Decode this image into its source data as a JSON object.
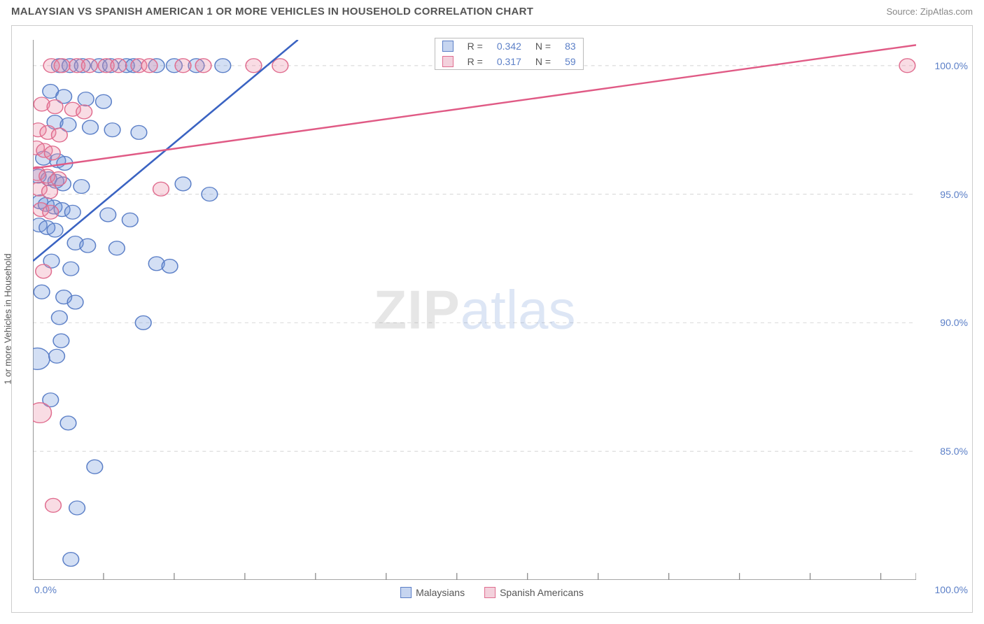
{
  "header": {
    "title": "MALAYSIAN VS SPANISH AMERICAN 1 OR MORE VEHICLES IN HOUSEHOLD CORRELATION CHART",
    "source_prefix": "Source: ",
    "source_name": "ZipAtlas.com"
  },
  "watermark": {
    "text_a": "ZIP",
    "text_b": "atlas"
  },
  "chart": {
    "type": "scatter",
    "ylabel": "1 or more Vehicles in Household",
    "xlim": [
      0,
      100
    ],
    "ylim": [
      80,
      101
    ],
    "x_ticks_minor": [
      0,
      8,
      16,
      24,
      32,
      40,
      48,
      56,
      64,
      72,
      80,
      88,
      96,
      100
    ],
    "x_ticks_labels": [
      {
        "val": 0,
        "label": "0.0%"
      },
      {
        "val": 100,
        "label": "100.0%"
      }
    ],
    "y_gridlines": [
      85,
      90,
      95,
      100
    ],
    "y_ticks_labels": [
      {
        "val": 85,
        "label": "85.0%"
      },
      {
        "val": 90,
        "label": "90.0%"
      },
      {
        "val": 95,
        "label": "95.0%"
      },
      {
        "val": 100,
        "label": "100.0%"
      }
    ],
    "tick_label_color": "#5b7fc7",
    "grid_color": "#d9d9d9",
    "axis_color": "#888888",
    "background_color": "#ffffff",
    "marker_radius_base": 9,
    "marker_stroke_width": 1.2,
    "series": [
      {
        "name": "Malaysians",
        "fill": "rgba(110,150,220,0.30)",
        "stroke": "#5b7fc7",
        "swatch_fill": "#c6d5f0",
        "swatch_border": "#5b7fc7",
        "r_label": "R =",
        "r_value": "0.342",
        "n_label": "N =",
        "n_value": "83",
        "trend": {
          "x1": 0,
          "y1": 92.4,
          "x2": 30,
          "y2": 101,
          "color": "#3a63c2",
          "width": 2.2
        },
        "points": [
          {
            "x": 0.5,
            "y": 88.6,
            "r": 14
          },
          {
            "x": 3.0,
            "y": 100
          },
          {
            "x": 4.2,
            "y": 100
          },
          {
            "x": 5.6,
            "y": 100
          },
          {
            "x": 7.5,
            "y": 100
          },
          {
            "x": 8.8,
            "y": 100
          },
          {
            "x": 10.6,
            "y": 100
          },
          {
            "x": 11.4,
            "y": 100
          },
          {
            "x": 14.0,
            "y": 100
          },
          {
            "x": 16.0,
            "y": 100
          },
          {
            "x": 18.5,
            "y": 100
          },
          {
            "x": 21.5,
            "y": 100
          },
          {
            "x": 2.0,
            "y": 99.0
          },
          {
            "x": 3.5,
            "y": 98.8
          },
          {
            "x": 6.0,
            "y": 98.7
          },
          {
            "x": 8.0,
            "y": 98.6
          },
          {
            "x": 2.5,
            "y": 97.8
          },
          {
            "x": 4.0,
            "y": 97.7
          },
          {
            "x": 6.5,
            "y": 97.6
          },
          {
            "x": 9.0,
            "y": 97.5
          },
          {
            "x": 12.0,
            "y": 97.4
          },
          {
            "x": 1.2,
            "y": 96.4
          },
          {
            "x": 2.8,
            "y": 96.3
          },
          {
            "x": 3.6,
            "y": 96.2
          },
          {
            "x": 0.6,
            "y": 95.7
          },
          {
            "x": 1.8,
            "y": 95.6
          },
          {
            "x": 2.6,
            "y": 95.5
          },
          {
            "x": 3.4,
            "y": 95.4
          },
          {
            "x": 5.5,
            "y": 95.3
          },
          {
            "x": 17.0,
            "y": 95.4
          },
          {
            "x": 20.0,
            "y": 95.0
          },
          {
            "x": 0.8,
            "y": 94.7
          },
          {
            "x": 1.5,
            "y": 94.6
          },
          {
            "x": 2.4,
            "y": 94.5
          },
          {
            "x": 3.3,
            "y": 94.4
          },
          {
            "x": 4.5,
            "y": 94.3
          },
          {
            "x": 8.5,
            "y": 94.2
          },
          {
            "x": 11.0,
            "y": 94.0
          },
          {
            "x": 0.7,
            "y": 93.8
          },
          {
            "x": 1.6,
            "y": 93.7
          },
          {
            "x": 2.5,
            "y": 93.6
          },
          {
            "x": 4.8,
            "y": 93.1
          },
          {
            "x": 6.2,
            "y": 93.0
          },
          {
            "x": 9.5,
            "y": 92.9
          },
          {
            "x": 2.1,
            "y": 92.4
          },
          {
            "x": 4.3,
            "y": 92.1
          },
          {
            "x": 14.0,
            "y": 92.3
          },
          {
            "x": 15.5,
            "y": 92.2
          },
          {
            "x": 1.0,
            "y": 91.2
          },
          {
            "x": 3.5,
            "y": 91.0
          },
          {
            "x": 4.8,
            "y": 90.8
          },
          {
            "x": 3.0,
            "y": 90.2
          },
          {
            "x": 12.5,
            "y": 90.0
          },
          {
            "x": 3.2,
            "y": 89.3
          },
          {
            "x": 2.7,
            "y": 88.7
          },
          {
            "x": 2.0,
            "y": 87.0
          },
          {
            "x": 4.0,
            "y": 86.1
          },
          {
            "x": 7.0,
            "y": 84.4
          },
          {
            "x": 5.0,
            "y": 82.8
          },
          {
            "x": 4.3,
            "y": 80.8
          }
        ]
      },
      {
        "name": "Spanish Americans",
        "fill": "rgba(235,140,165,0.30)",
        "stroke": "#e06d8f",
        "swatch_fill": "#f3d1dc",
        "swatch_border": "#e06d8f",
        "r_label": "R =",
        "r_value": "0.317",
        "n_label": "N =",
        "n_value": "59",
        "trend": {
          "x1": 0,
          "y1": 96.0,
          "x2": 100,
          "y2": 100.8,
          "color": "#e05a85",
          "width": 2.2
        },
        "points": [
          {
            "x": 0.8,
            "y": 86.5,
            "r": 13
          },
          {
            "x": 2.1,
            "y": 100
          },
          {
            "x": 3.3,
            "y": 100
          },
          {
            "x": 5.0,
            "y": 100
          },
          {
            "x": 6.4,
            "y": 100
          },
          {
            "x": 8.3,
            "y": 100
          },
          {
            "x": 9.7,
            "y": 100
          },
          {
            "x": 12.0,
            "y": 100
          },
          {
            "x": 13.2,
            "y": 100
          },
          {
            "x": 17.0,
            "y": 100
          },
          {
            "x": 19.3,
            "y": 100
          },
          {
            "x": 25.0,
            "y": 100
          },
          {
            "x": 28.0,
            "y": 100
          },
          {
            "x": 99.0,
            "y": 100
          },
          {
            "x": 1.0,
            "y": 98.5
          },
          {
            "x": 2.5,
            "y": 98.4
          },
          {
            "x": 4.5,
            "y": 98.3
          },
          {
            "x": 5.8,
            "y": 98.2
          },
          {
            "x": 0.6,
            "y": 97.5
          },
          {
            "x": 1.7,
            "y": 97.4
          },
          {
            "x": 3.0,
            "y": 97.3
          },
          {
            "x": 0.4,
            "y": 96.8
          },
          {
            "x": 1.3,
            "y": 96.7
          },
          {
            "x": 2.2,
            "y": 96.6
          },
          {
            "x": 0.5,
            "y": 95.8
          },
          {
            "x": 1.6,
            "y": 95.7
          },
          {
            "x": 2.9,
            "y": 95.6
          },
          {
            "x": 0.7,
            "y": 95.2
          },
          {
            "x": 1.9,
            "y": 95.1
          },
          {
            "x": 14.5,
            "y": 95.2
          },
          {
            "x": 0.9,
            "y": 94.4
          },
          {
            "x": 2.0,
            "y": 94.3
          },
          {
            "x": 1.2,
            "y": 92.0
          },
          {
            "x": 2.3,
            "y": 82.9
          }
        ]
      }
    ],
    "stats_box": {
      "left_pct": 44,
      "top_pct": 2
    },
    "legend_bottom": [
      {
        "label": "Malaysians",
        "series_idx": 0
      },
      {
        "label": "Spanish Americans",
        "series_idx": 1
      }
    ]
  }
}
